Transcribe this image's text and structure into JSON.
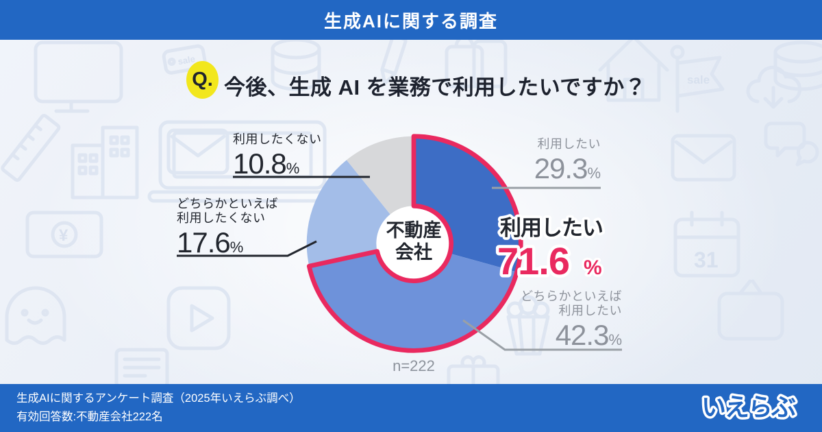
{
  "header": {
    "title": "生成AIに関する調査"
  },
  "question": {
    "badge": "Q.",
    "text": "今後、生成 AI を業務で利用したいですか？"
  },
  "chart_data": {
    "type": "pie",
    "subtype": "donut",
    "title": "今後、生成 AI を業務で利用したいですか？",
    "center_label": "不動産会社",
    "center_label_lines": [
      "不動産",
      "会社"
    ],
    "sample_size_label": "n=222",
    "percent_symbol": "%",
    "start_angle_deg": 0,
    "direction": "clockwise",
    "segments": [
      {
        "label": "利用したい",
        "value": 29.3,
        "display": "29.3",
        "color": "#3d6dc5"
      },
      {
        "label": "どちらかといえば利用したい",
        "value": 42.3,
        "display": "42.3",
        "color": "#6e92da"
      },
      {
        "label": "どちらかといえば利用したくない",
        "value": 17.6,
        "display": "17.6",
        "color": "#a3bde8"
      },
      {
        "label": "利用したくない",
        "value": 10.8,
        "display": "10.8",
        "color": "#d7d8da"
      }
    ],
    "highlight": {
      "label": "利用したい",
      "display": "71.6",
      "value": 71.6,
      "color": "#e9295f",
      "covers_segments": [
        0,
        1
      ]
    }
  },
  "callouts": {
    "want": {
      "lines": [
        "利用したい"
      ],
      "value": "29.3"
    },
    "somewhat_want": {
      "lines": [
        "どちらかといえば",
        "利用したい"
      ],
      "value": "42.3"
    },
    "somewhat_decline": {
      "lines": [
        "どちらかといえば",
        "利用したくない"
      ],
      "value": "17.6"
    },
    "decline": {
      "lines": [
        "利用したくない"
      ],
      "value": "10.8"
    }
  },
  "footer": {
    "source_line1": "生成AIに関するアンケート調査（2025年いえらぶ調べ）",
    "source_line2": "有効回答数:不動産会社222名",
    "logo_text": "いえらぶ"
  },
  "background": {
    "sale_tag": "sale",
    "calendar_day": "31",
    "yen": "¥"
  }
}
